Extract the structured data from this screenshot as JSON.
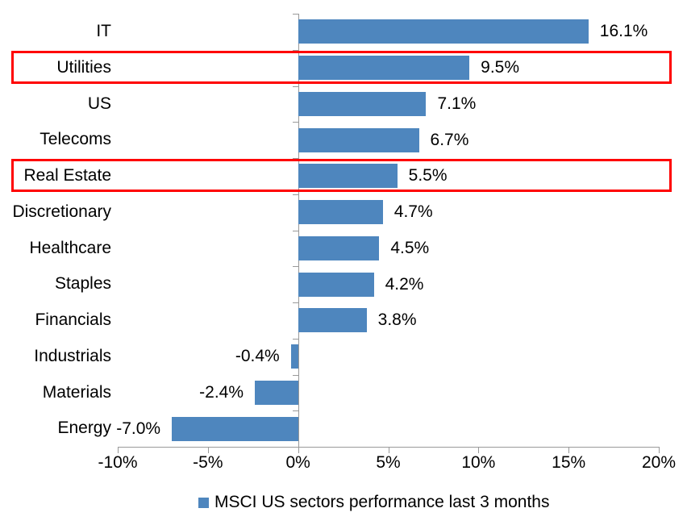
{
  "chart_data": {
    "type": "bar",
    "orientation": "horizontal",
    "categories": [
      "IT",
      "Utilities",
      "US",
      "Telecoms",
      "Real Estate",
      "Discretionary",
      "Healthcare",
      "Staples",
      "Financials",
      "Industrials",
      "Materials",
      "Energy"
    ],
    "values": [
      16.1,
      9.5,
      7.1,
      6.7,
      5.5,
      4.7,
      4.5,
      4.2,
      3.8,
      -0.4,
      -2.4,
      -7.0
    ],
    "value_labels": [
      "16.1%",
      "9.5%",
      "7.1%",
      "6.7%",
      "5.5%",
      "4.7%",
      "4.5%",
      "4.2%",
      "3.8%",
      "-0.4%",
      "-2.4%",
      "-7.0%"
    ],
    "xlim": [
      -10,
      20
    ],
    "x_ticks": [
      -10,
      -5,
      0,
      5,
      10,
      15,
      20
    ],
    "x_tick_labels": [
      "-10%",
      "-5%",
      "0%",
      "5%",
      "10%",
      "15%",
      "20%"
    ],
    "grid": false,
    "bar_color": "#4e86be",
    "axis_color": "#999999",
    "highlight_color": "#ff0000",
    "highlighted_categories": [
      "Utilities",
      "Real Estate"
    ],
    "legend": {
      "position": "bottom",
      "entries": [
        {
          "label": "MSCI US sectors performance last 3 months",
          "color": "#4e86be"
        }
      ]
    }
  }
}
